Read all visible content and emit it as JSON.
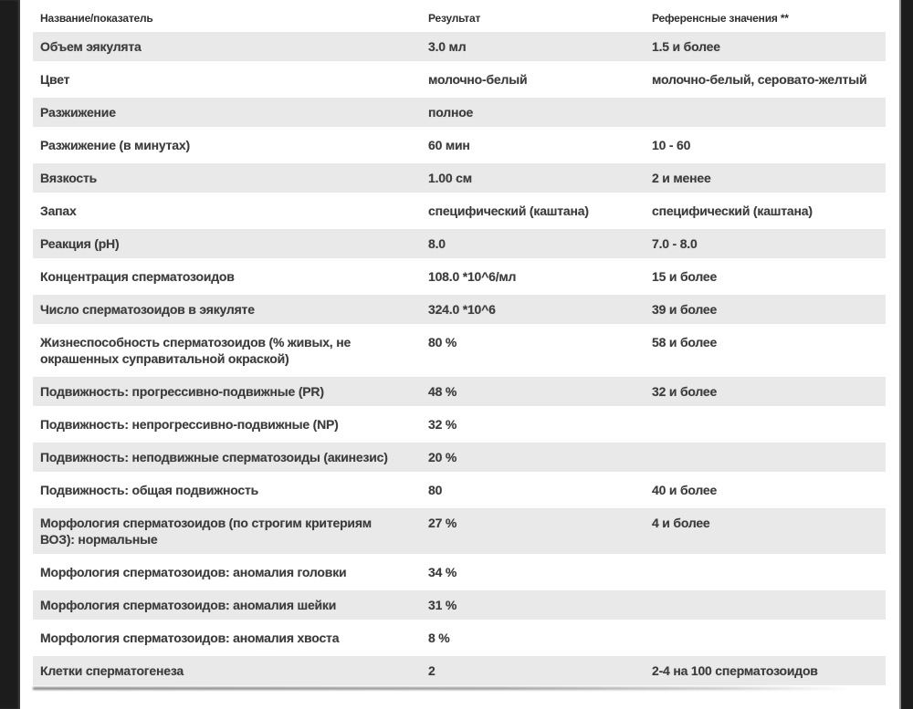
{
  "table": {
    "columns": [
      {
        "key": "name",
        "label": "Название/показатель"
      },
      {
        "key": "result",
        "label": "Результат"
      },
      {
        "key": "reference",
        "label": "Референсные значения **"
      }
    ],
    "rows": [
      {
        "name": "Объем эякулята",
        "result": "3.0 мл",
        "reference": "1.5 и более"
      },
      {
        "name": "Цвет",
        "result": "молочно-белый",
        "reference": "молочно-белый, серовато-желтый"
      },
      {
        "name": "Разжижение",
        "result": "полное",
        "reference": ""
      },
      {
        "name": "Разжижение (в минутах)",
        "result": "60 мин",
        "reference": "10 - 60"
      },
      {
        "name": "Вязкость",
        "result": "1.00 см",
        "reference": "2 и менее"
      },
      {
        "name": "Запах",
        "result": "специфический (каштана)",
        "reference": "специфический (каштана)"
      },
      {
        "name": "Реакция (pH)",
        "result": "8.0",
        "reference": "7.0 - 8.0"
      },
      {
        "name": "Концентрация сперматозоидов",
        "result": "108.0 *10^6/мл",
        "reference": "15 и более"
      },
      {
        "name": "Число сперматозоидов в эякуляте",
        "result": "324.0 *10^6",
        "reference": "39 и более"
      },
      {
        "name": "Жизнеспособность сперматозоидов (% живых, не окрашенных суправитальной окраской)",
        "result": "80 %",
        "reference": "58 и более"
      },
      {
        "name": "Подвижность: прогрессивно-подвижные (PR)",
        "result": "48 %",
        "reference": "32 и более"
      },
      {
        "name": "Подвижность: непрогрессивно-подвижные (NP)",
        "result": "32 %",
        "reference": ""
      },
      {
        "name": "Подвижность: неподвижные сперматозоиды (акинезис)",
        "result": "20 %",
        "reference": ""
      },
      {
        "name": "Подвижность: общая подвижность",
        "result": "80",
        "reference": "40 и более"
      },
      {
        "name": "Морфология сперматозоидов (по строгим критериям ВОЗ): нормальные",
        "result": "27 %",
        "reference": "4 и более"
      },
      {
        "name": "Морфология сперматозоидов: аномалия головки",
        "result": "34 %",
        "reference": ""
      },
      {
        "name": "Морфология сперматозоидов: аномалия шейки",
        "result": "31 %",
        "reference": ""
      },
      {
        "name": "Морфология сперматозоидов: аномалия хвоста",
        "result": "8 %",
        "reference": ""
      },
      {
        "name": "Клетки сперматогенеза",
        "result": "2",
        "reference": "2-4 на 100 сперматозоидов"
      }
    ]
  },
  "colors": {
    "zebra_row": "#e9e9e9",
    "text": "#3c3c3c",
    "frame_bar": "#1c1c1c",
    "background": "#ffffff"
  }
}
